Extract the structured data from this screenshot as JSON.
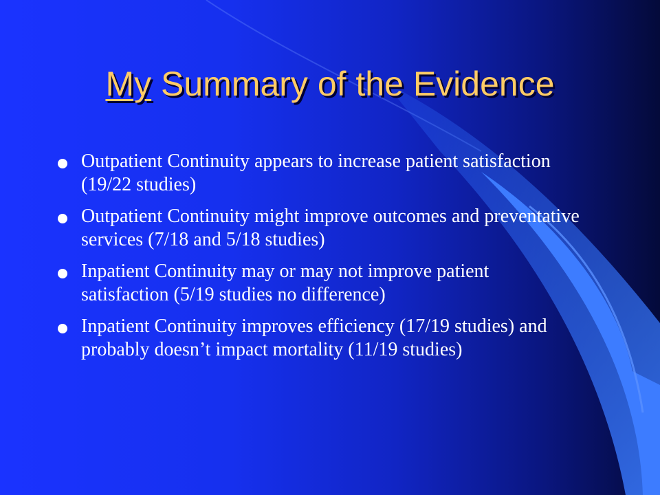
{
  "slide": {
    "title_underlined": "My",
    "title_rest": " Summary of the Evidence",
    "bullets": [
      "Outpatient Continuity appears to increase patient satisfaction (19/22 studies)",
      "Outpatient Continuity might improve outcomes and preventative services (7/18 and 5/18 studies)",
      "Inpatient Continuity may or may not improve patient satisfaction (5/19 studies no difference)",
      "Inpatient Continuity improves efficiency (17/19 studies) and probably doesn’t impact mortality (11/19 studies)"
    ]
  },
  "colors": {
    "background": "#1a33ff",
    "title": "#ffcc66",
    "text": "#ffffff",
    "accent_curve": "#3f7bff"
  }
}
